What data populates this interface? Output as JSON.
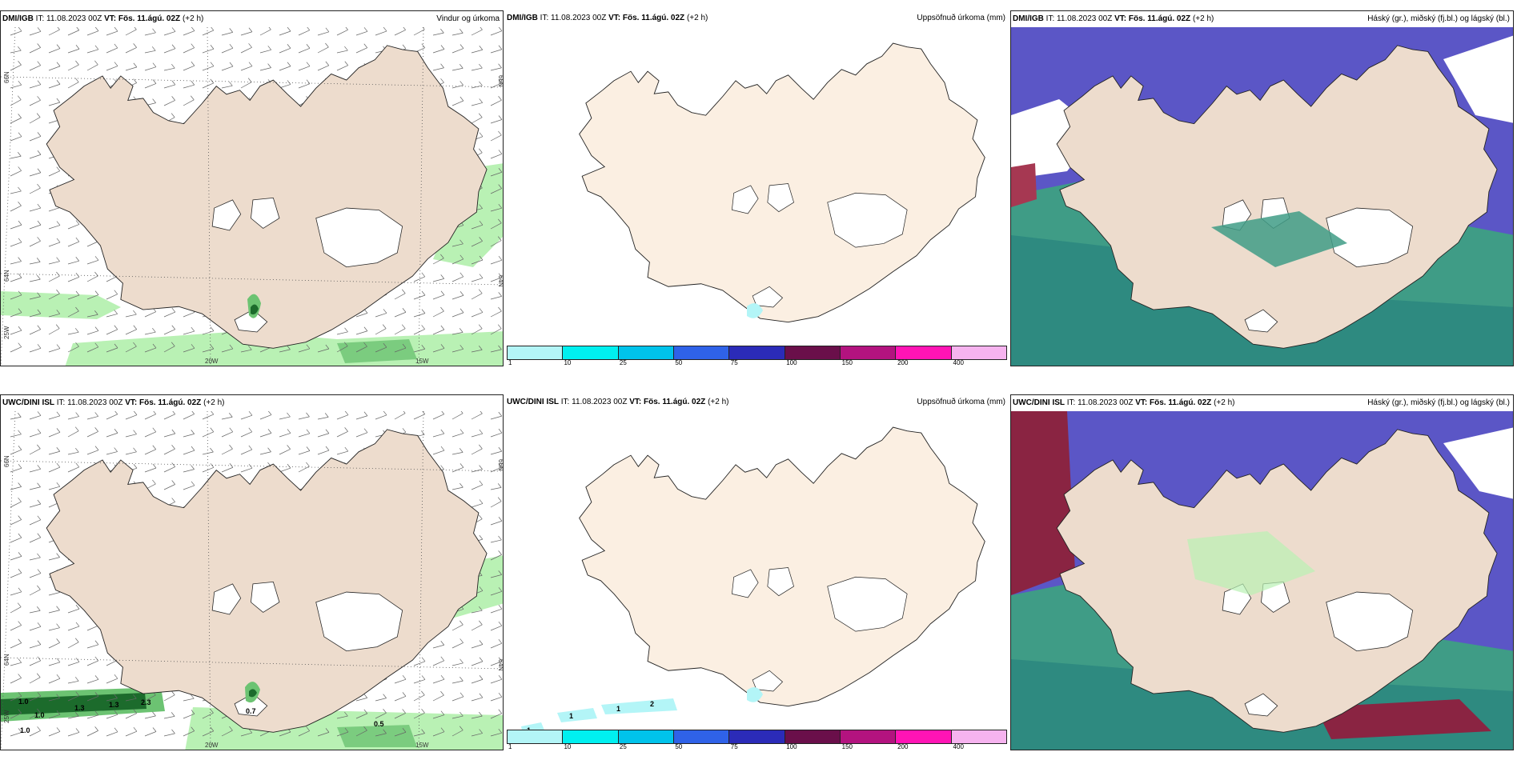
{
  "colors": {
    "land": "#eddccd",
    "land_plain": "#fbefe2",
    "coast": "#222222",
    "green_light": "#b9f1b4",
    "green_mid": "#6cc372",
    "green_dark": "#1c6b2c",
    "cyan_light": "#b3f5f7",
    "blue_cloud": "#5b56c6",
    "green_cloud": "#3f9c86",
    "teal_cloud": "#2e8a80",
    "red_cloud": "#a63852",
    "maroon_cloud": "#8a2442"
  },
  "panels": [
    {
      "model": "DMI/IGB",
      "it_label": "IT:",
      "it_value": "11.08.2023 00Z",
      "vt_label": "VT:",
      "vt_value": "Fös. 11.ágú. 02Z",
      "offset": "(+2 h)",
      "title": "Vindur og úrkoma",
      "map_type": "wind_precip",
      "values": []
    },
    {
      "model": "DMI/IGB",
      "it_label": "IT:",
      "it_value": "11.08.2023 00Z",
      "vt_label": "VT:",
      "vt_value": "Fös. 11.ágú. 02Z",
      "offset": "(+2 h)",
      "title": "Uppsöfnuð úrkoma (mm)",
      "map_type": "accum_precip",
      "values": []
    },
    {
      "model": "DMI/IGB",
      "it_label": "IT:",
      "it_value": "11.08.2023 00Z",
      "vt_label": "VT:",
      "vt_value": "Fös. 11.ágú. 02Z",
      "offset": "(+2 h)",
      "title": "Háský (gr.), miðský (fj.bl.) og lágský (bl.)",
      "map_type": "clouds",
      "values": []
    },
    {
      "model": "UWC/DINI ISL",
      "it_label": "IT:",
      "it_value": "11.08.2023 00Z",
      "vt_label": "VT:",
      "vt_value": "Fös. 11.ágú. 02Z",
      "offset": "(+2 h)",
      "title": "",
      "map_type": "wind_precip",
      "values": [
        "1.0",
        "1.0",
        "1.0",
        "1.3",
        "1.3",
        "2.3",
        "0.7",
        "0.5"
      ]
    },
    {
      "model": "UWC/DINI ISL",
      "it_label": "IT:",
      "it_value": "11.08.2023 00Z",
      "vt_label": "VT:",
      "vt_value": "Fös. 11.ágú. 02Z",
      "offset": "(+2 h)",
      "title": "Uppsöfnuð úrkoma (mm)",
      "map_type": "accum_precip",
      "values": [
        "1",
        "1",
        "1",
        "2"
      ]
    },
    {
      "model": "UWC/DINI ISL",
      "it_label": "IT:",
      "it_value": "11.08.2023 00Z",
      "vt_label": "VT:",
      "vt_value": "Fös. 11.ágú. 02Z",
      "offset": "(+2 h)",
      "title": "Háský (gr.), miðský (fj.bl.) og lágský (bl.)",
      "map_type": "clouds",
      "values": []
    }
  ],
  "grid_labels": {
    "lat_top": "66N",
    "lat_mid": "64N",
    "lon_left": "25W",
    "lon_bottom_1": "20W",
    "lon_bottom_2": "15W"
  },
  "colorbar": {
    "colors": [
      "#b3f5f7",
      "#00f0f0",
      "#00c3eb",
      "#2f62e8",
      "#2b2bb8",
      "#6a0f4a",
      "#b3137f",
      "#ff14b5",
      "#f6b3ef"
    ],
    "ticks": [
      "1",
      "10",
      "25",
      "50",
      "75",
      "100",
      "150",
      "200",
      "400"
    ]
  }
}
